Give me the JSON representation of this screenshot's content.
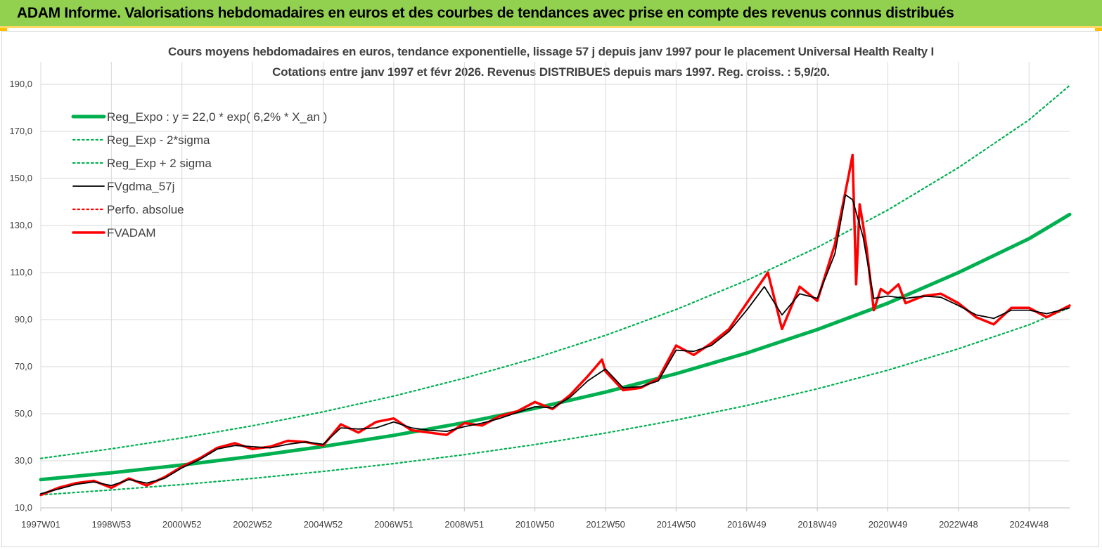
{
  "header": {
    "title": "ADAM Informe. Valorisations hebdomadaires en euros et des courbes de tendances avec prise en compte des revenus connus distribués"
  },
  "chart_data": {
    "type": "line",
    "title": "Cours moyens hebdomadaires en euros, tendance exponentielle, lissage 57 j depuis janv 1997 pour le placement Universal Health Realty I",
    "subtitle": "Cotations entre janv 1997 et févr 2026. Revenus DISTRIBUES depuis mars 1997. Reg. croiss. : 5,9/20.",
    "xlabel": "",
    "ylabel": "",
    "ylim": [
      10,
      190
    ],
    "y_ticks": [
      "10,0",
      "30,0",
      "50,0",
      "70,0",
      "90,0",
      "110,0",
      "130,0",
      "150,0",
      "170,0",
      "190,0"
    ],
    "y_tick_values": [
      10,
      30,
      50,
      70,
      90,
      110,
      130,
      150,
      170,
      190
    ],
    "x_ticks": [
      "1997W01",
      "1998W53",
      "2000W52",
      "2002W52",
      "2004W52",
      "2006W51",
      "2008W51",
      "2010W50",
      "2012W50",
      "2014W50",
      "2016W49",
      "2018W49",
      "2020W49",
      "2022W48",
      "2024W48"
    ],
    "x_tick_years": [
      1997.0,
      1999.0,
      2001.0,
      2003.0,
      2005.0,
      2007.0,
      2009.0,
      2011.0,
      2013.0,
      2015.0,
      2017.0,
      2019.0,
      2021.0,
      2023.0,
      2025.0
    ],
    "x_range": [
      1997.0,
      2026.15
    ],
    "grid": true,
    "legend_position": "top-left",
    "series": [
      {
        "name": "Reg_Expo : y = 22,0 * exp( 6,2% *  X_an )",
        "color": "#00b050",
        "style": "solid-thick",
        "x": [
          1997,
          1999,
          2001,
          2003,
          2005,
          2007,
          2009,
          2011,
          2013,
          2015,
          2017,
          2019,
          2021,
          2023,
          2025,
          2026.15
        ],
        "values": [
          22.0,
          24.9,
          28.2,
          31.9,
          36.1,
          40.8,
          46.2,
          52.3,
          59.2,
          67.0,
          75.8,
          85.8,
          97.0,
          110.0,
          124.4,
          134.7
        ]
      },
      {
        "name": "Reg_Exp - 2*sigma",
        "color": "#00b050",
        "style": "dotted",
        "x": [
          1997,
          1999,
          2001,
          2003,
          2005,
          2007,
          2009,
          2011,
          2013,
          2015,
          2017,
          2019,
          2021,
          2023,
          2025,
          2026.15
        ],
        "values": [
          15.5,
          17.6,
          19.9,
          22.5,
          25.5,
          28.8,
          32.6,
          36.9,
          41.8,
          47.3,
          53.5,
          60.6,
          68.5,
          77.6,
          87.8,
          95.1
        ]
      },
      {
        "name": "Reg_Exp + 2 sigma",
        "color": "#00b050",
        "style": "dotted",
        "x": [
          1997,
          1999,
          2001,
          2003,
          2005,
          2007,
          2009,
          2011,
          2013,
          2015,
          2017,
          2019,
          2021,
          2023,
          2025,
          2026.15
        ],
        "values": [
          31.0,
          35.1,
          39.7,
          44.9,
          50.8,
          57.5,
          65.1,
          73.6,
          83.3,
          94.3,
          106.7,
          120.7,
          136.6,
          154.6,
          174.9,
          189.5
        ]
      },
      {
        "name": "FVgdma_57j",
        "color": "#000000",
        "style": "solid",
        "x": [
          1997.0,
          1997.5,
          1998.0,
          1998.5,
          1999.0,
          1999.5,
          2000.0,
          2000.5,
          2001.0,
          2001.5,
          2002.0,
          2002.5,
          2003.0,
          2003.5,
          2004.0,
          2004.5,
          2005.0,
          2005.5,
          2006.0,
          2006.5,
          2007.0,
          2007.5,
          2008.0,
          2008.5,
          2009.0,
          2009.5,
          2010.0,
          2010.5,
          2011.0,
          2011.5,
          2012.0,
          2012.5,
          2013.0,
          2013.5,
          2014.0,
          2014.5,
          2015.0,
          2015.5,
          2016.0,
          2016.5,
          2017.0,
          2017.5,
          2018.0,
          2018.5,
          2019.0,
          2019.5,
          2019.8,
          2020.0,
          2020.3,
          2020.6,
          2021.0,
          2021.5,
          2022.0,
          2022.5,
          2023.0,
          2023.5,
          2024.0,
          2024.5,
          2025.0,
          2025.5,
          2026.15
        ],
        "values": [
          16.0,
          18.0,
          20.0,
          21.0,
          19.5,
          22.0,
          20.5,
          22.5,
          27.0,
          30.5,
          35.0,
          36.5,
          36.0,
          35.5,
          37.0,
          38.0,
          37.0,
          44.0,
          43.5,
          44.0,
          46.5,
          44.0,
          43.0,
          42.5,
          44.5,
          46.0,
          48.0,
          50.5,
          53.0,
          52.5,
          57.0,
          64.0,
          69.0,
          61.0,
          61.5,
          64.0,
          77.0,
          76.5,
          79.0,
          85.0,
          94.0,
          104.0,
          92.0,
          101.0,
          99.0,
          118.0,
          143.0,
          141.0,
          125.0,
          99.0,
          100.0,
          99.0,
          100.0,
          99.5,
          96.0,
          92.0,
          90.5,
          94.0,
          94.0,
          92.5,
          95.0
        ]
      },
      {
        "name": "Perfo. absolue",
        "color": "#ff0000",
        "style": "dotted",
        "x": [
          1997.0,
          2026.15
        ],
        "values": [
          16.0,
          95.0
        ]
      },
      {
        "name": "FVADAM",
        "color": "#ff0000",
        "style": "solid-thick",
        "x": [
          1997.0,
          1997.5,
          1998.0,
          1998.5,
          1999.0,
          1999.5,
          2000.0,
          2000.5,
          2001.0,
          2001.5,
          2002.0,
          2002.5,
          2003.0,
          2003.5,
          2004.0,
          2004.5,
          2005.0,
          2005.5,
          2006.0,
          2006.5,
          2007.0,
          2007.5,
          2008.0,
          2008.5,
          2009.0,
          2009.5,
          2010.0,
          2010.5,
          2011.0,
          2011.5,
          2012.0,
          2012.5,
          2012.9,
          2013.0,
          2013.5,
          2014.0,
          2014.5,
          2015.0,
          2015.5,
          2016.0,
          2016.5,
          2017.0,
          2017.6,
          2018.0,
          2018.5,
          2019.0,
          2019.5,
          2019.9,
          2020.0,
          2020.1,
          2020.2,
          2020.3,
          2020.4,
          2020.6,
          2020.8,
          2021.0,
          2021.3,
          2021.5,
          2022.0,
          2022.5,
          2023.0,
          2023.5,
          2024.0,
          2024.5,
          2025.0,
          2025.5,
          2026.15
        ],
        "values": [
          15.5,
          18.5,
          20.5,
          21.5,
          18.5,
          22.5,
          19.5,
          23.0,
          27.5,
          31.0,
          35.5,
          37.5,
          35.0,
          36.0,
          38.5,
          38.0,
          36.5,
          45.5,
          42.0,
          46.5,
          48.0,
          43.0,
          42.0,
          41.0,
          46.0,
          45.0,
          49.0,
          51.0,
          55.0,
          52.0,
          58.0,
          66.0,
          73.0,
          68.0,
          60.0,
          61.0,
          65.0,
          79.0,
          75.0,
          80.0,
          86.0,
          97.0,
          110.0,
          86.0,
          104.0,
          98.0,
          122.0,
          152.0,
          160.0,
          105.0,
          139.0,
          130.0,
          120.0,
          94.0,
          103.0,
          101.0,
          105.0,
          97.0,
          100.0,
          101.0,
          97.0,
          91.0,
          88.0,
          95.0,
          95.0,
          91.0,
          96.0
        ]
      }
    ]
  }
}
